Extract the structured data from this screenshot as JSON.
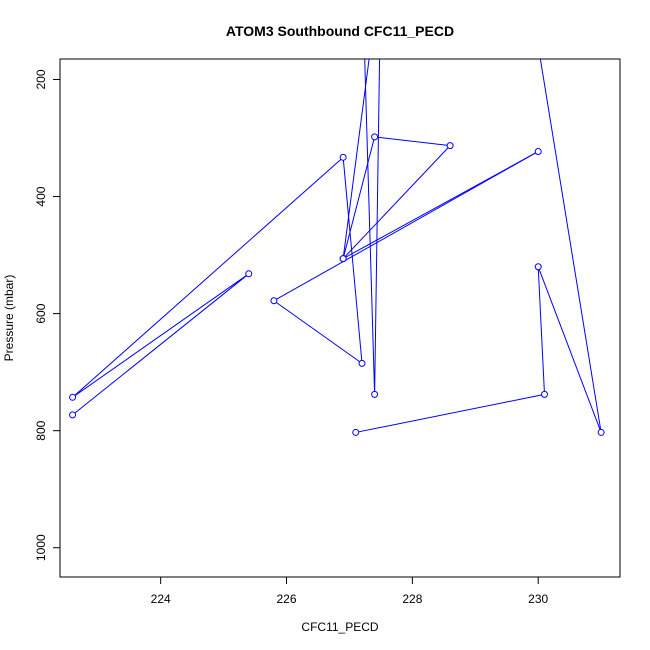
{
  "chart_data": {
    "type": "line",
    "title": "ATOM3 Southbound CFC11_PECD",
    "xlabel": "CFC11_PECD",
    "ylabel": "Pressure (mbar)",
    "xlim": [
      222.4,
      231.3
    ],
    "ylim": [
      1050,
      165
    ],
    "y_reversed": true,
    "x_ticks": [
      224,
      226,
      228,
      230
    ],
    "y_ticks": [
      200,
      400,
      600,
      800,
      1000
    ],
    "grid": false,
    "line_color": "#0000ff",
    "marker": "open-circle",
    "series": [
      {
        "points": [
          [
            222.6,
            773
          ],
          [
            225.4,
            532
          ],
          [
            222.6,
            743
          ],
          [
            226.9,
            333
          ],
          [
            227.2,
            685
          ],
          [
            225.8,
            578
          ],
          [
            230.0,
            323
          ],
          [
            226.9,
            506
          ],
          [
            227.4,
            298
          ],
          [
            228.6,
            313
          ],
          [
            226.9,
            506
          ],
          [
            227.5,
            10
          ],
          [
            227.4,
            738
          ],
          [
            227.2,
            10
          ],
          [
            229.8,
            10
          ],
          [
            231.0,
            803
          ],
          [
            230.0,
            520
          ],
          [
            230.1,
            738
          ],
          [
            227.1,
            803
          ]
        ]
      }
    ]
  }
}
